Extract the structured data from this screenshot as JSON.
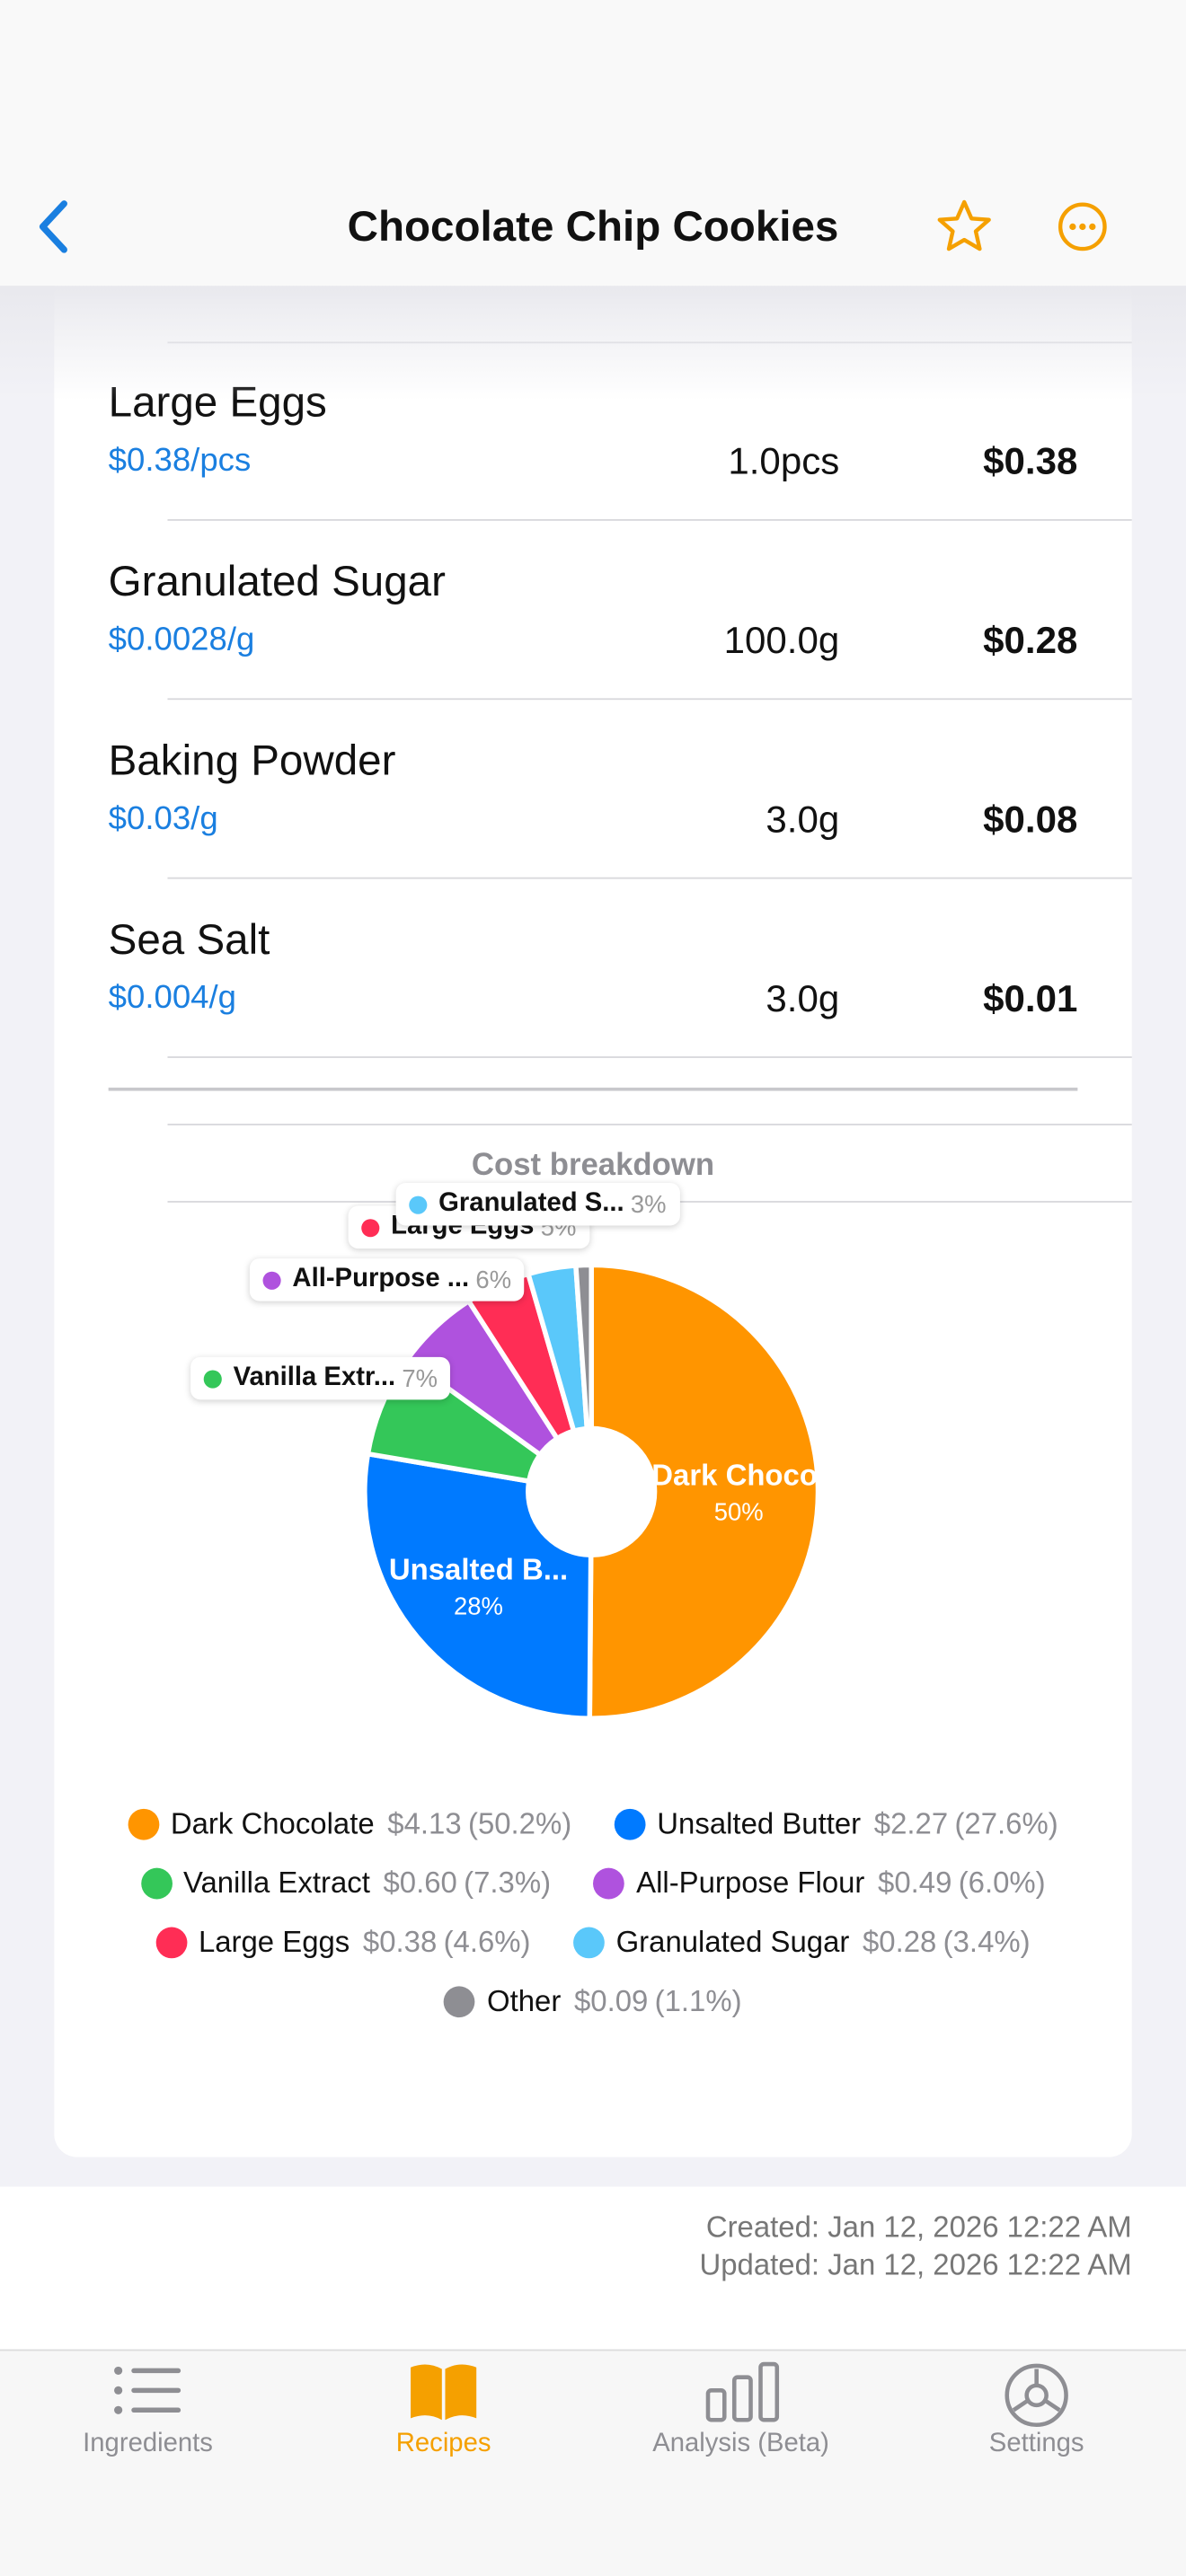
{
  "header": {
    "title": "Chocolate Chip Cookies"
  },
  "ingredients": [
    {
      "name": "Large Eggs",
      "unit_price": "$0.38/pcs",
      "quantity": "1.0pcs",
      "cost": "$0.38"
    },
    {
      "name": "Granulated Sugar",
      "unit_price": "$0.0028/g",
      "quantity": "100.0g",
      "cost": "$0.28"
    },
    {
      "name": "Baking Powder",
      "unit_price": "$0.03/g",
      "quantity": "3.0g",
      "cost": "$0.08"
    },
    {
      "name": "Sea Salt",
      "unit_price": "$0.004/g",
      "quantity": "3.0g",
      "cost": "$0.01"
    }
  ],
  "chart_data": {
    "type": "pie",
    "title": "Cost breakdown",
    "categories": [
      "Dark Chocolate",
      "Unsalted Butter",
      "Vanilla Extract",
      "All-Purpose Flour",
      "Large Eggs",
      "Granulated Sugar",
      "Other"
    ],
    "values": [
      4.13,
      2.27,
      0.6,
      0.49,
      0.38,
      0.28,
      0.09
    ],
    "value_labels": [
      "$4.13",
      "$2.27",
      "$0.60",
      "$0.49",
      "$0.38",
      "$0.28",
      "$0.09"
    ],
    "percents": [
      50.2,
      27.6,
      7.3,
      6.0,
      4.6,
      3.4,
      1.1
    ],
    "percent_labels": [
      "(50.2%)",
      "(27.6%)",
      "(7.3%)",
      "(6.0%)",
      "(4.6%)",
      "(3.4%)",
      "(1.1%)"
    ],
    "slice_labels": [
      "Dark Choco.",
      "Unsalted B...",
      "Vanilla Extr...",
      "All-Purpose ...",
      "Large Eggs",
      "Granulated S...",
      null
    ],
    "slice_percent_labels": [
      "50%",
      "28%",
      "7%",
      "6%",
      "5%",
      "3%",
      null
    ],
    "colors": [
      "#ff9500",
      "#007aff",
      "#34c759",
      "#af52de",
      "#ff2d55",
      "#5ac8fa",
      "#8e8e93"
    ]
  },
  "footer": {
    "created": "Created: Jan 12, 2026 12:22 AM",
    "updated": "Updated: Jan 12, 2026 12:22 AM"
  },
  "tab_bar": {
    "tabs": [
      "Ingredients",
      "Recipes",
      "Analysis (Beta)",
      "Settings"
    ]
  }
}
